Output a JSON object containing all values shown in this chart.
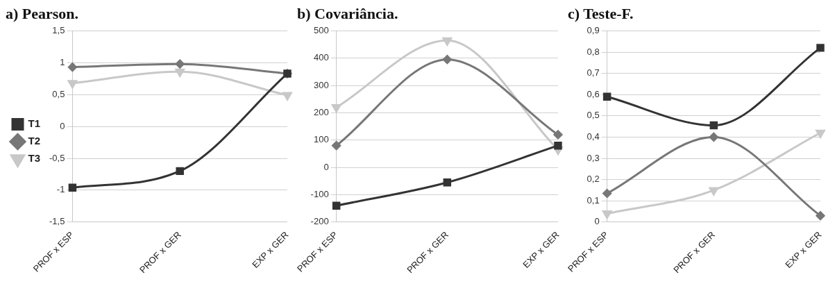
{
  "chart_data": [
    {
      "type": "line",
      "title": "a) Pearson.",
      "categories": [
        "PROF x ESP",
        "PROF x GER",
        "EXP x GER"
      ],
      "legend": "left",
      "grid": "y",
      "ylim": [
        -1.5,
        1.5
      ],
      "yticks": [
        {
          "value": -1.5,
          "label": "-1,5"
        },
        -1,
        {
          "value": -0.5,
          "label": "-0,5"
        },
        0,
        {
          "value": 0.5,
          "label": "0,5"
        },
        1,
        {
          "value": 1.5,
          "label": "1,5"
        }
      ],
      "series": [
        {
          "name": "T1",
          "color": "#333333",
          "marker": "square",
          "values": [
            -0.96,
            -0.7,
            0.83
          ]
        },
        {
          "name": "T2",
          "color": "#777777",
          "marker": "diamond",
          "values": [
            0.93,
            0.98,
            0.83
          ]
        },
        {
          "name": "T3",
          "color": "#c8c8c8",
          "marker": "triangle",
          "values": [
            0.68,
            0.86,
            0.49
          ]
        }
      ]
    },
    {
      "type": "line",
      "title": "b) Covariância.",
      "categories": [
        "PROF x ESP",
        "PROF x GER",
        "EXP x GER"
      ],
      "grid": "y",
      "ylim": [
        -200,
        500
      ],
      "yticks": [
        -200,
        -100,
        0,
        100,
        200,
        300,
        400,
        500
      ],
      "series": [
        {
          "color": "#333333",
          "marker": "square",
          "values": [
            -140,
            -55,
            80
          ]
        },
        {
          "color": "#777777",
          "marker": "diamond",
          "values": [
            80,
            395,
            120
          ]
        },
        {
          "color": "#c8c8c8",
          "marker": "triangle",
          "values": [
            220,
            465,
            65
          ]
        }
      ]
    },
    {
      "type": "line",
      "title": "c) Teste-F.",
      "categories": [
        "PROF x ESP",
        "PROF x GER",
        "EXP x GER"
      ],
      "grid": "y",
      "ylim": [
        0,
        0.9
      ],
      "yticks": [
        0,
        {
          "value": 0.1,
          "label": "0,1"
        },
        {
          "value": 0.2,
          "label": "0,2"
        },
        {
          "value": 0.3,
          "label": "0,3"
        },
        {
          "value": 0.4,
          "label": "0,4"
        },
        {
          "value": 0.5,
          "label": "0,5"
        },
        {
          "value": 0.6,
          "label": "0,6"
        },
        {
          "value": 0.7,
          "label": "0,7"
        },
        {
          "value": 0.8,
          "label": "0,8"
        },
        {
          "value": 0.9,
          "label": "0,9"
        }
      ],
      "series": [
        {
          "color": "#333333",
          "marker": "square",
          "values": [
            0.59,
            0.455,
            0.82
          ]
        },
        {
          "color": "#777777",
          "marker": "diamond",
          "values": [
            0.135,
            0.4,
            0.03
          ]
        },
        {
          "color": "#c8c8c8",
          "marker": "triangle",
          "values": [
            0.04,
            0.15,
            0.42
          ]
        }
      ]
    }
  ]
}
